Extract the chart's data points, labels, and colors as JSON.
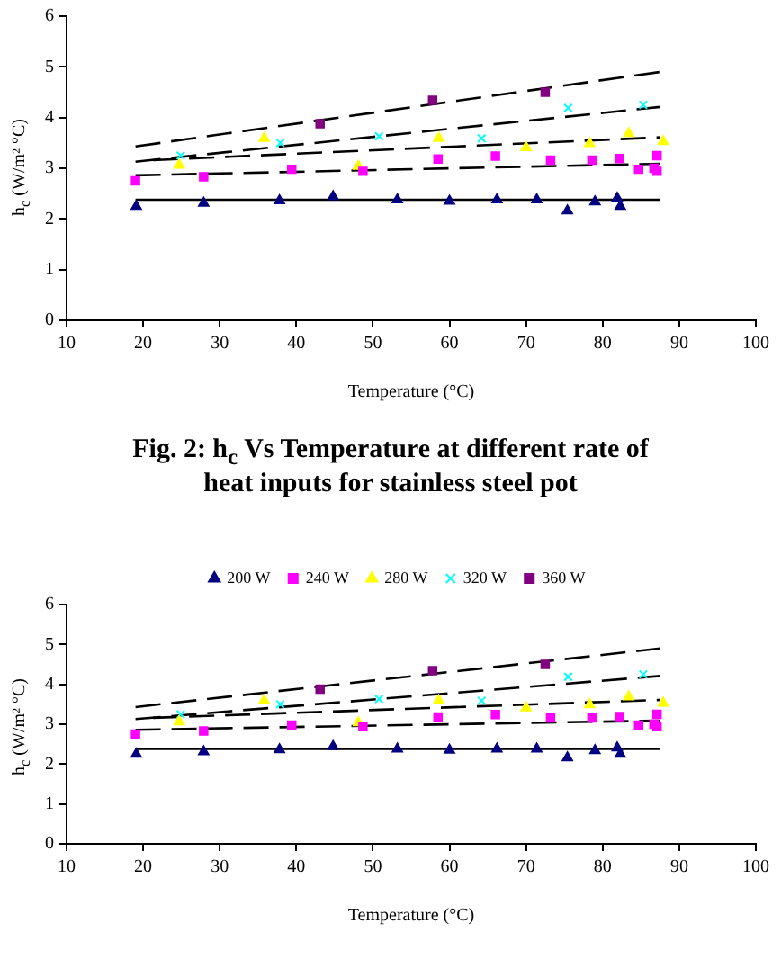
{
  "chart_data": [
    {
      "type": "scatter",
      "xlabel": "Temperature (°C)",
      "ylabel": "h$_{c}$ (W/m² °C)",
      "xlim": [
        10,
        100
      ],
      "xticks": [
        10,
        20,
        30,
        40,
        50,
        60,
        70,
        80,
        90,
        100
      ],
      "ylim": [
        0,
        6
      ],
      "yticks": [
        0,
        1,
        2,
        3,
        4,
        5,
        6
      ],
      "grid": false,
      "legend": false,
      "annotations": [
        "Fig. 2: h$_{c}$ Vs Temperature at different rate of heat inputs for stainless steel pot"
      ],
      "series": [
        {
          "color": "#000080",
          "marker": "triangle",
          "x": [
            19.1,
            27.9,
            37.8,
            44.8,
            53.2,
            60.0,
            66.2,
            71.4,
            75.4,
            79.0,
            81.9,
            82.3
          ],
          "values": [
            2.25,
            2.31,
            2.36,
            2.44,
            2.38,
            2.35,
            2.38,
            2.38,
            2.16,
            2.34,
            2.41,
            2.25
          ]
        },
        {
          "color": "#ff00ff",
          "marker": "square",
          "x": [
            19.0,
            27.9,
            39.4,
            48.7,
            58.5,
            66.0,
            73.2,
            78.6,
            82.2,
            84.7,
            86.7,
            87.1,
            87.1
          ],
          "values": [
            2.75,
            2.83,
            2.98,
            2.94,
            3.18,
            3.24,
            3.16,
            3.16,
            3.19,
            2.98,
            3.0,
            3.25,
            2.94
          ]
        },
        {
          "color": "#ffff00",
          "marker": "triangle",
          "x": [
            24.7,
            35.8,
            48.1,
            58.6,
            70.0,
            78.3,
            83.4,
            87.9
          ],
          "values": [
            3.06,
            3.59,
            3.04,
            3.59,
            3.41,
            3.49,
            3.69,
            3.53
          ]
        },
        {
          "color": "#00ffff",
          "marker": "cross",
          "x": [
            24.9,
            37.9,
            50.8,
            64.2,
            75.5,
            85.3
          ],
          "values": [
            3.25,
            3.5,
            3.63,
            3.59,
            4.19,
            4.25
          ]
        },
        {
          "color": "#800080",
          "marker": "square",
          "x": [
            43.1,
            57.8,
            72.5
          ],
          "values": [
            3.88,
            4.34,
            4.5
          ]
        },
        {
          "type": "line",
          "color": "#000000",
          "marker": "none",
          "line_style": "solid",
          "x": [
            19,
            87.5
          ],
          "values": [
            2.38,
            2.38
          ]
        },
        {
          "type": "line",
          "color": "#000000",
          "marker": "none",
          "line_style": "dashed",
          "x": [
            19,
            87.5
          ],
          "values": [
            2.86,
            3.09
          ]
        },
        {
          "type": "line",
          "color": "#000000",
          "marker": "none",
          "line_style": "dashed",
          "x": [
            21.3,
            87.5
          ],
          "values": [
            3.16,
            3.61
          ]
        },
        {
          "type": "line",
          "color": "#000000",
          "marker": "none",
          "line_style": "dashed",
          "x": [
            19,
            87.5
          ],
          "values": [
            3.13,
            4.21
          ]
        },
        {
          "type": "line",
          "color": "#000000",
          "marker": "none",
          "line_style": "dashed",
          "x": [
            19,
            87.5
          ],
          "values": [
            3.43,
            4.9
          ]
        }
      ]
    },
    {
      "type": "scatter",
      "xlabel": "Temperature (°C)",
      "ylabel": "h$_{c}$ (W/m² °C)",
      "xlim": [
        10,
        100
      ],
      "xticks": [
        10,
        20,
        30,
        40,
        50,
        60,
        70,
        80,
        90,
        100
      ],
      "ylim": [
        0,
        6
      ],
      "yticks": [
        0,
        1,
        2,
        3,
        4,
        5,
        6
      ],
      "grid": false,
      "legend": "top",
      "series": [
        {
          "name": "200 W",
          "color": "#000080",
          "marker": "triangle",
          "x": [
            19.1,
            27.9,
            37.8,
            44.8,
            53.2,
            60.0,
            66.2,
            71.4,
            75.4,
            79.0,
            81.9,
            82.3
          ],
          "values": [
            2.25,
            2.31,
            2.36,
            2.44,
            2.38,
            2.35,
            2.38,
            2.38,
            2.16,
            2.34,
            2.41,
            2.25
          ]
        },
        {
          "name": "240 W",
          "color": "#ff00ff",
          "marker": "square",
          "x": [
            19.0,
            27.9,
            39.4,
            48.7,
            58.5,
            66.0,
            73.2,
            78.6,
            82.2,
            84.7,
            86.7,
            87.1,
            87.1
          ],
          "values": [
            2.75,
            2.83,
            2.98,
            2.94,
            3.18,
            3.24,
            3.16,
            3.16,
            3.19,
            2.98,
            3.0,
            3.25,
            2.94
          ]
        },
        {
          "name": "280 W",
          "color": "#ffff00",
          "marker": "triangle",
          "x": [
            24.7,
            35.8,
            48.1,
            58.6,
            70.0,
            78.3,
            83.4,
            87.9
          ],
          "values": [
            3.06,
            3.59,
            3.04,
            3.59,
            3.41,
            3.49,
            3.69,
            3.53
          ]
        },
        {
          "name": "320 W",
          "color": "#00ffff",
          "marker": "cross",
          "x": [
            24.9,
            37.9,
            50.8,
            64.2,
            75.5,
            85.3
          ],
          "values": [
            3.25,
            3.5,
            3.63,
            3.59,
            4.19,
            4.25
          ]
        },
        {
          "name": "360 W",
          "color": "#800080",
          "marker": "square",
          "x": [
            43.1,
            57.8,
            72.5
          ],
          "values": [
            3.88,
            4.34,
            4.5
          ]
        },
        {
          "type": "line",
          "color": "#000000",
          "marker": "none",
          "line_style": "solid",
          "x": [
            19,
            87.5
          ],
          "values": [
            2.38,
            2.38
          ]
        },
        {
          "type": "line",
          "color": "#000000",
          "marker": "none",
          "line_style": "dashed",
          "x": [
            19,
            87.5
          ],
          "values": [
            2.86,
            3.09
          ]
        },
        {
          "type": "line",
          "color": "#000000",
          "marker": "none",
          "line_style": "dashed",
          "x": [
            21.3,
            87.5
          ],
          "values": [
            3.16,
            3.61
          ]
        },
        {
          "type": "line",
          "color": "#000000",
          "marker": "none",
          "line_style": "dashed",
          "x": [
            19,
            87.5
          ],
          "values": [
            3.13,
            4.21
          ]
        },
        {
          "type": "line",
          "color": "#000000",
          "marker": "none",
          "line_style": "dashed",
          "x": [
            19,
            87.5
          ],
          "values": [
            3.43,
            4.9
          ]
        }
      ]
    }
  ]
}
